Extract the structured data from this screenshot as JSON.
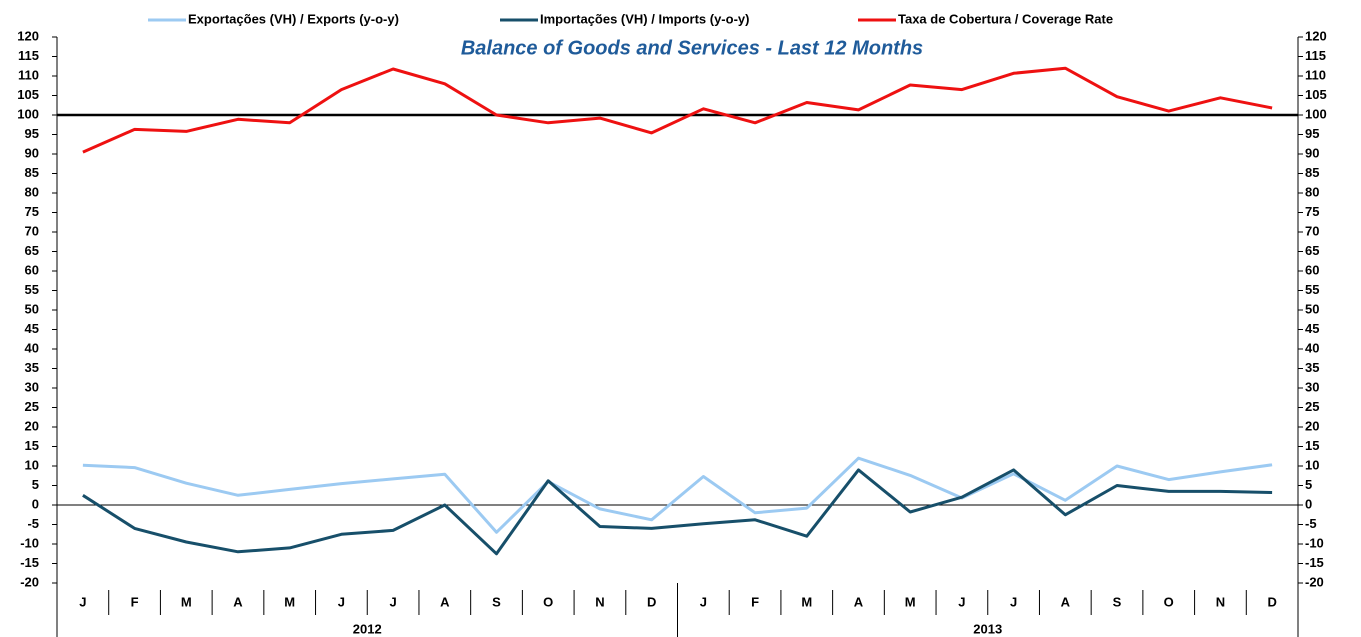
{
  "chart_data": {
    "type": "line",
    "title": "Balance of Goods and Services - Last 12 Months",
    "categories": [
      "J",
      "F",
      "M",
      "A",
      "M",
      "J",
      "J",
      "A",
      "S",
      "O",
      "N",
      "D",
      "J",
      "F",
      "M",
      "A",
      "M",
      "J",
      "J",
      "A",
      "S",
      "O",
      "N",
      "D"
    ],
    "year_groups": [
      "2012",
      "2013"
    ],
    "series": [
      {
        "name": "Exportações (VH) / Exports (y-o-y)",
        "color": "#9ccaf2",
        "values": [
          10.2,
          9.6,
          5.6,
          2.5,
          4,
          5.5,
          6.7,
          7.9,
          -7,
          6,
          -1,
          -3.8,
          7.3,
          -2,
          -0.8,
          12,
          7.6,
          1.8,
          8,
          1.2,
          10,
          6.5,
          8.5,
          10.3
        ]
      },
      {
        "name": "Importações (VH) / Imports (y-o-y)",
        "color": "#174f6a",
        "values": [
          2.5,
          -6,
          -9.5,
          -12,
          -11,
          -7.5,
          -6.5,
          0,
          -12.5,
          6.2,
          -5.5,
          -6,
          -4.8,
          -3.8,
          -8,
          9,
          -1.8,
          2,
          9,
          -2.5,
          5,
          3.5,
          3.5,
          3.2
        ]
      },
      {
        "name": "Taxa de Cobertura / Coverage Rate",
        "color": "#ee1111",
        "values": [
          90.5,
          96.3,
          95.8,
          98.9,
          98,
          106.5,
          111.8,
          108,
          100,
          98,
          99.2,
          95.4,
          101.6,
          98,
          103.2,
          101.3,
          107.7,
          106.5,
          110.7,
          112,
          104.7,
          101,
          104.4,
          101.8
        ]
      }
    ],
    "reference_line": 100,
    "ylim": [
      -20,
      120
    ],
    "yticks": [
      -20,
      -15,
      -10,
      -5,
      0,
      5,
      10,
      15,
      20,
      25,
      30,
      35,
      40,
      45,
      50,
      55,
      60,
      65,
      70,
      75,
      80,
      85,
      90,
      95,
      100,
      105,
      110,
      115,
      120
    ],
    "y2lim": [
      -20,
      120
    ],
    "y2ticks": [
      -20,
      -15,
      -10,
      -5,
      0,
      5,
      10,
      15,
      20,
      25,
      30,
      35,
      40,
      45,
      50,
      55,
      60,
      65,
      70,
      75,
      80,
      85,
      90,
      95,
      100,
      105,
      110,
      115,
      120
    ],
    "legend": "top"
  }
}
